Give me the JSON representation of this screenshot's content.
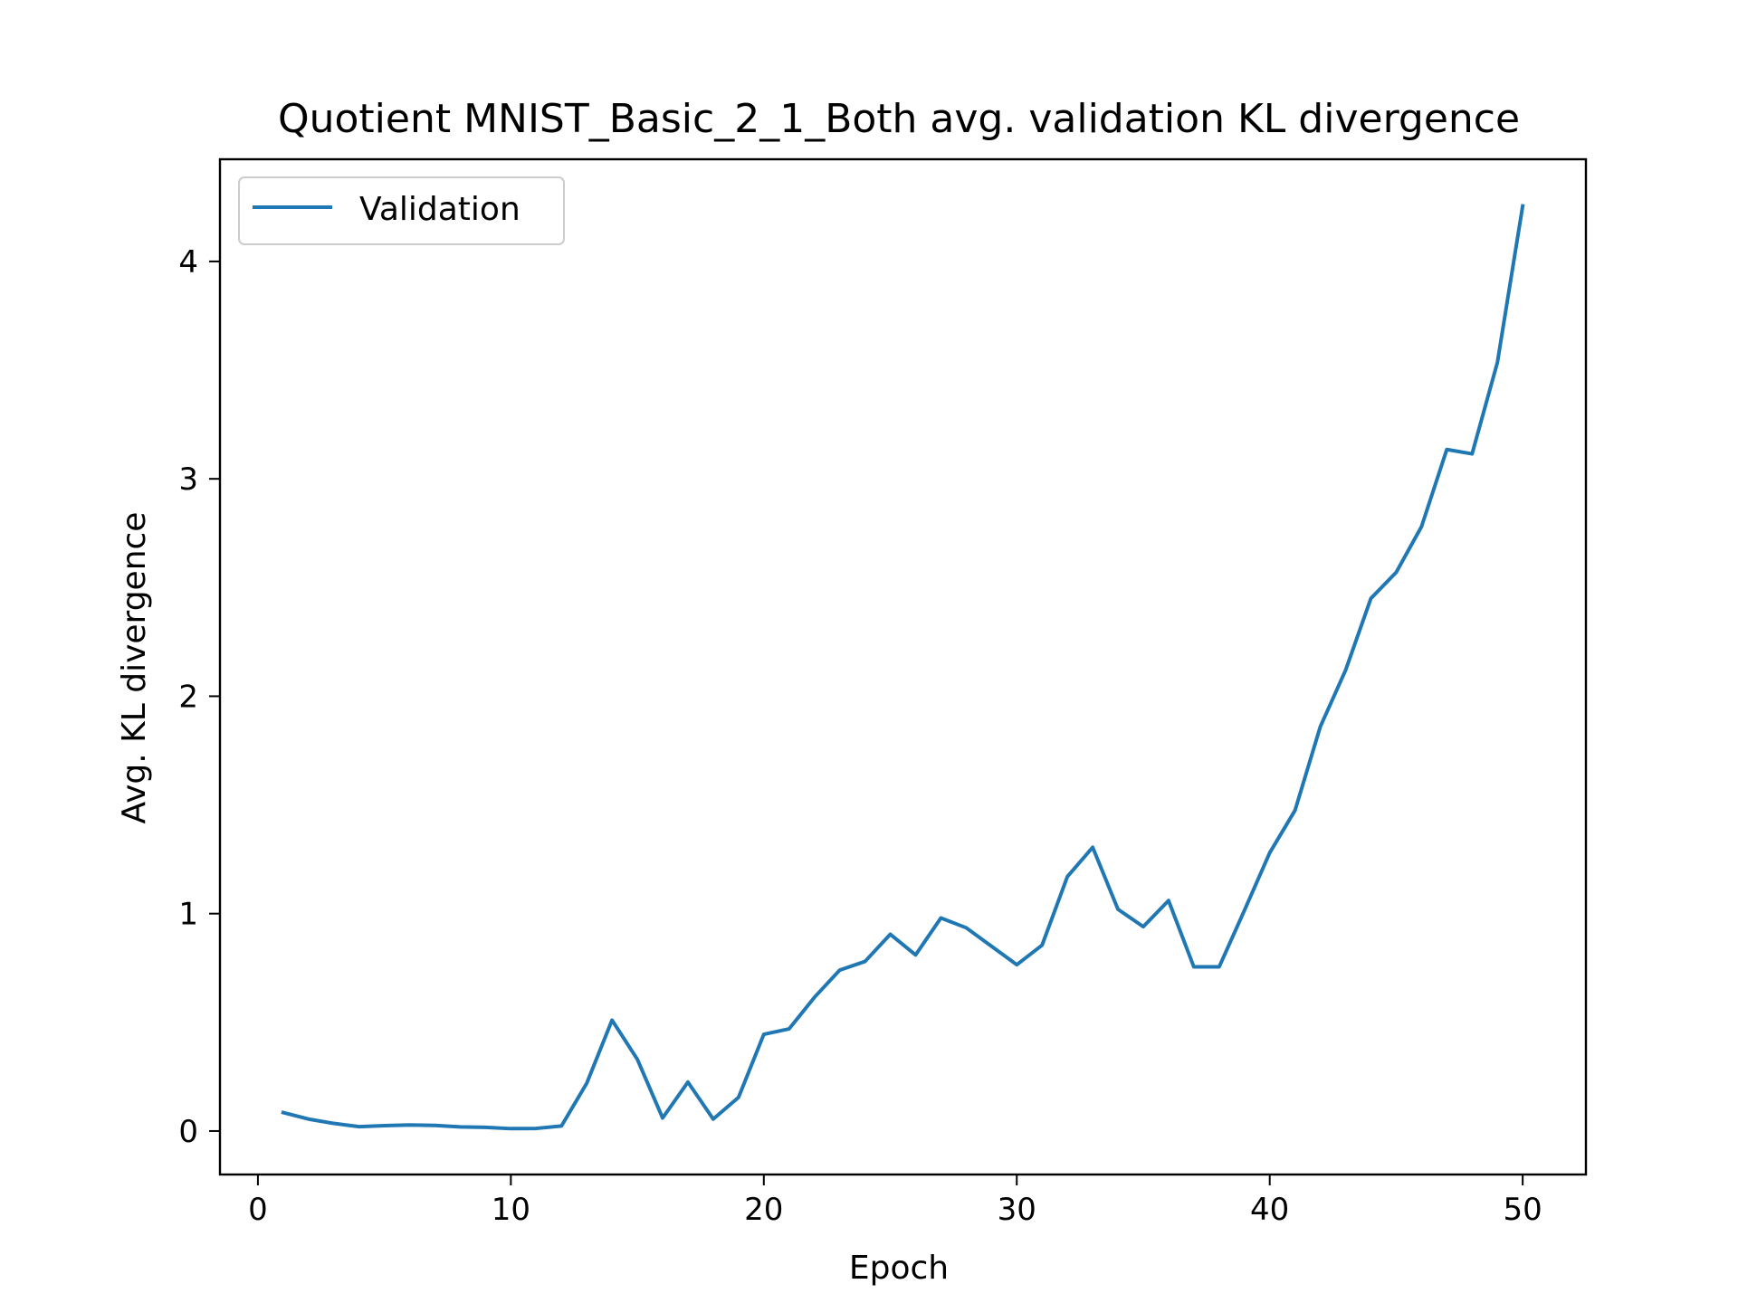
{
  "chart_data": {
    "type": "line",
    "title": "Quotient MNIST_Basic_2_1_Both avg. validation KL divergence",
    "xlabel": "Epoch",
    "ylabel": "Avg. KL divergence",
    "xlim": [
      -1.5,
      52.5
    ],
    "ylim": [
      -0.2,
      4.47
    ],
    "xticks": [
      0,
      10,
      20,
      30,
      40,
      50
    ],
    "yticks": [
      0,
      1,
      2,
      3,
      4
    ],
    "grid": false,
    "legend_position": "upper-left",
    "colors": {
      "series": "#1f77b4",
      "axes": "#000000",
      "legend_border": "#cccccc"
    },
    "series": [
      {
        "name": "Validation",
        "x": [
          1,
          2,
          3,
          4,
          5,
          6,
          7,
          8,
          9,
          10,
          11,
          12,
          13,
          14,
          15,
          16,
          17,
          18,
          19,
          20,
          21,
          22,
          23,
          24,
          25,
          26,
          27,
          28,
          29,
          30,
          31,
          32,
          33,
          34,
          35,
          36,
          37,
          38,
          39,
          40,
          41,
          42,
          43,
          44,
          45,
          46,
          47,
          48,
          49,
          50
        ],
        "values": [
          0.085,
          0.055,
          0.035,
          0.02,
          0.025,
          0.028,
          0.026,
          0.019,
          0.017,
          0.011,
          0.012,
          0.023,
          0.22,
          0.51,
          0.33,
          0.06,
          0.225,
          0.055,
          0.155,
          0.445,
          0.47,
          0.615,
          0.74,
          0.78,
          0.905,
          0.81,
          0.98,
          0.935,
          0.85,
          0.765,
          0.855,
          1.17,
          1.305,
          1.02,
          0.94,
          1.06,
          0.755,
          0.755,
          1.015,
          1.28,
          1.475,
          1.86,
          2.12,
          2.45,
          2.57,
          2.78,
          3.135,
          3.115,
          3.535,
          4.255
        ]
      }
    ]
  }
}
